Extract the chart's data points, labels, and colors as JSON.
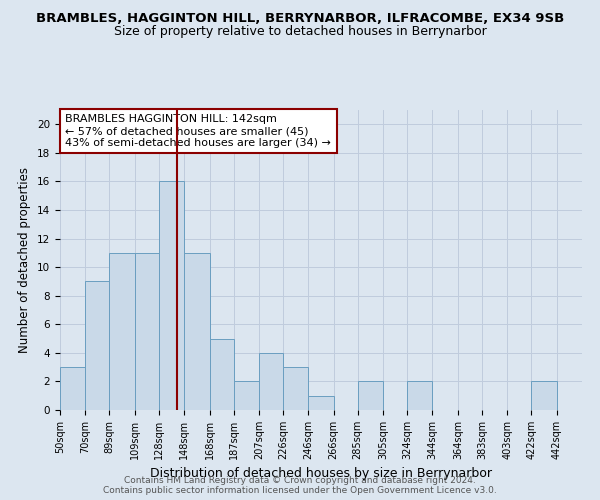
{
  "title": "BRAMBLES, HAGGINTON HILL, BERRYNARBOR, ILFRACOMBE, EX34 9SB",
  "subtitle": "Size of property relative to detached houses in Berrynarbor",
  "xlabel": "Distribution of detached houses by size in Berrynarbor",
  "ylabel": "Number of detached properties",
  "footnote1": "Contains HM Land Registry data © Crown copyright and database right 2024.",
  "footnote2": "Contains public sector information licensed under the Open Government Licence v3.0.",
  "annotation_line1": "BRAMBLES HAGGINTON HILL: 142sqm",
  "annotation_line2": "← 57% of detached houses are smaller (45)",
  "annotation_line3": "43% of semi-detached houses are larger (34) →",
  "bar_edges": [
    50,
    70,
    89,
    109,
    128,
    148,
    168,
    187,
    207,
    226,
    246,
    266,
    285,
    305,
    324,
    344,
    364,
    383,
    403,
    422,
    442,
    462
  ],
  "bar_heights": [
    3,
    9,
    11,
    11,
    16,
    11,
    5,
    2,
    4,
    3,
    1,
    0,
    2,
    0,
    2,
    0,
    0,
    0,
    0,
    2,
    0
  ],
  "xtick_labels": [
    "50sqm",
    "70sqm",
    "89sqm",
    "109sqm",
    "128sqm",
    "148sqm",
    "168sqm",
    "187sqm",
    "207sqm",
    "226sqm",
    "246sqm",
    "266sqm",
    "285sqm",
    "305sqm",
    "324sqm",
    "344sqm",
    "364sqm",
    "383sqm",
    "403sqm",
    "422sqm",
    "442sqm"
  ],
  "bar_face_color": "#c9d9e8",
  "bar_edge_color": "#6a9ec0",
  "vline_x": 142,
  "vline_color": "#8b0000",
  "ylim": [
    0,
    21
  ],
  "yticks": [
    0,
    2,
    4,
    6,
    8,
    10,
    12,
    14,
    16,
    18,
    20
  ],
  "grid_color": "#c0ccdd",
  "bg_color": "#dce6f0",
  "plot_bg_color": "#dce6f0",
  "annotation_box_color": "#8b0000",
  "title_fontsize": 9.5,
  "subtitle_fontsize": 9,
  "tick_label_fontsize": 7,
  "ylabel_fontsize": 8.5,
  "xlabel_fontsize": 9,
  "annotation_fontsize": 8,
  "footnote_fontsize": 6.5
}
